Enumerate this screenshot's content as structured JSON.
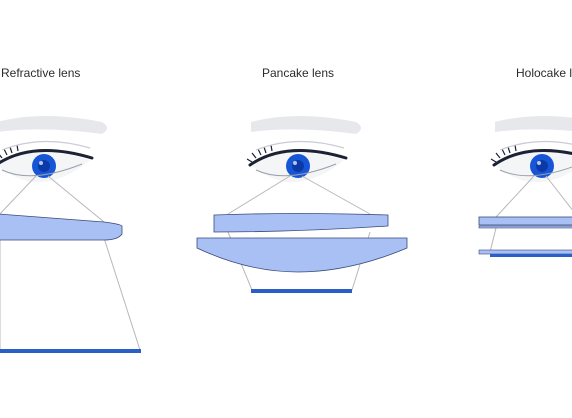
{
  "panels": [
    {
      "id": "refractive",
      "label": "Refractive lens"
    },
    {
      "id": "pancake",
      "label": "Pancake lens"
    },
    {
      "id": "holocake",
      "label": "Holocake lens"
    }
  ],
  "colors": {
    "background": "#ffffff",
    "lens_fill": "#a8c0f4",
    "lens_stroke": "#3a4a7a",
    "iris": "#1656d6",
    "iris_dark": "#0b3aa8",
    "display": "#2a5fc8",
    "ray": "#b8b8b8",
    "eyelid": "#1c2233",
    "brow": "#e6e8ec"
  },
  "icons": [
    "eye-illustration",
    "lens-element",
    "display-panel"
  ]
}
